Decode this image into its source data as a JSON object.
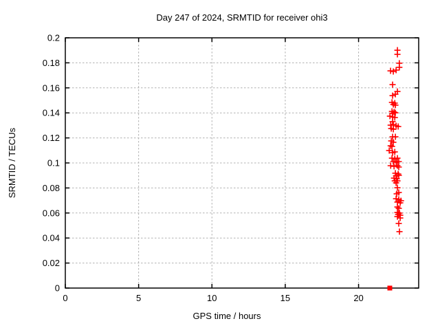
{
  "chart_data": {
    "type": "scatter",
    "title": "Day 247 of 2024, SRMTID for receiver ohi3",
    "xlabel": "GPS time / hours",
    "ylabel": "SRMTID / TECUs",
    "xlim": [
      0,
      24.1
    ],
    "ylim": [
      0,
      0.2
    ],
    "xticks": [
      0,
      5,
      10,
      15,
      20
    ],
    "xtick_labels": [
      "0",
      "5",
      "10",
      "15",
      "20"
    ],
    "yticks": [
      0,
      0.02,
      0.04,
      0.06,
      0.08,
      0.1,
      0.12,
      0.14,
      0.16,
      0.18,
      0.2
    ],
    "ytick_labels": [
      "0",
      "0.02",
      "0.04",
      "0.06",
      "0.08",
      "0.1",
      "0.12",
      "0.14",
      "0.16",
      "0.18",
      "0.2"
    ],
    "grid": true,
    "legend": "none",
    "colors": {
      "marker": "#ff0000",
      "grid": "#b0b0b0",
      "axis": "#000000",
      "text": "#000000"
    },
    "series": [
      {
        "name": "SRMTID values",
        "marker": "plus",
        "color": "#ff0000",
        "points": [
          [
            22.65,
            0.1901
          ],
          [
            22.65,
            0.1868
          ],
          [
            22.78,
            0.1797
          ],
          [
            22.78,
            0.1764
          ],
          [
            22.18,
            0.1736
          ],
          [
            22.37,
            0.1731
          ],
          [
            22.56,
            0.1742
          ],
          [
            22.32,
            0.1626
          ],
          [
            22.65,
            0.1571
          ],
          [
            22.51,
            0.1549
          ],
          [
            22.32,
            0.1538
          ],
          [
            22.28,
            0.1484
          ],
          [
            22.47,
            0.1478
          ],
          [
            22.37,
            0.1467
          ],
          [
            22.51,
            0.1462
          ],
          [
            22.28,
            0.1412
          ],
          [
            22.42,
            0.1407
          ],
          [
            22.32,
            0.1396
          ],
          [
            22.51,
            0.1401
          ],
          [
            22.14,
            0.1374
          ],
          [
            22.32,
            0.1368
          ],
          [
            22.47,
            0.1363
          ],
          [
            22.32,
            0.133
          ],
          [
            22.19,
            0.1302
          ],
          [
            22.37,
            0.1308
          ],
          [
            22.56,
            0.1297
          ],
          [
            22.7,
            0.1291
          ],
          [
            22.23,
            0.1275
          ],
          [
            22.37,
            0.1269
          ],
          [
            22.32,
            0.1209
          ],
          [
            22.51,
            0.1209
          ],
          [
            22.23,
            0.1176
          ],
          [
            22.37,
            0.1165
          ],
          [
            22.19,
            0.1137
          ],
          [
            22.28,
            0.1132
          ],
          [
            22.09,
            0.1099
          ],
          [
            22.32,
            0.1082
          ],
          [
            22.47,
            0.1088
          ],
          [
            22.28,
            0.1038
          ],
          [
            22.47,
            0.1033
          ],
          [
            22.65,
            0.1038
          ],
          [
            22.37,
            0.1011
          ],
          [
            22.56,
            0.1005
          ],
          [
            22.74,
            0.1011
          ],
          [
            22.19,
            0.0978
          ],
          [
            22.42,
            0.0973
          ],
          [
            22.65,
            0.0978
          ],
          [
            22.74,
            0.0967
          ],
          [
            22.51,
            0.0918
          ],
          [
            22.7,
            0.0912
          ],
          [
            22.56,
            0.0896
          ],
          [
            22.74,
            0.0901
          ],
          [
            22.42,
            0.0879
          ],
          [
            22.6,
            0.0874
          ],
          [
            22.47,
            0.0857
          ],
          [
            22.65,
            0.0857
          ],
          [
            22.56,
            0.0841
          ],
          [
            22.65,
            0.0802
          ],
          [
            22.74,
            0.0764
          ],
          [
            22.6,
            0.0753
          ],
          [
            22.56,
            0.0714
          ],
          [
            22.74,
            0.0709
          ],
          [
            22.89,
            0.0698
          ],
          [
            22.65,
            0.0687
          ],
          [
            22.84,
            0.0681
          ],
          [
            22.65,
            0.0648
          ],
          [
            22.74,
            0.0637
          ],
          [
            22.65,
            0.0604
          ],
          [
            22.79,
            0.0599
          ],
          [
            22.7,
            0.0588
          ],
          [
            22.84,
            0.0582
          ],
          [
            22.65,
            0.0571
          ],
          [
            22.84,
            0.056
          ],
          [
            22.74,
            0.0516
          ],
          [
            22.79,
            0.0451
          ]
        ]
      },
      {
        "name": "zero marker",
        "marker": "filled-square",
        "color": "#ff0000",
        "points": [
          [
            22.13,
            0.0
          ]
        ]
      }
    ]
  }
}
